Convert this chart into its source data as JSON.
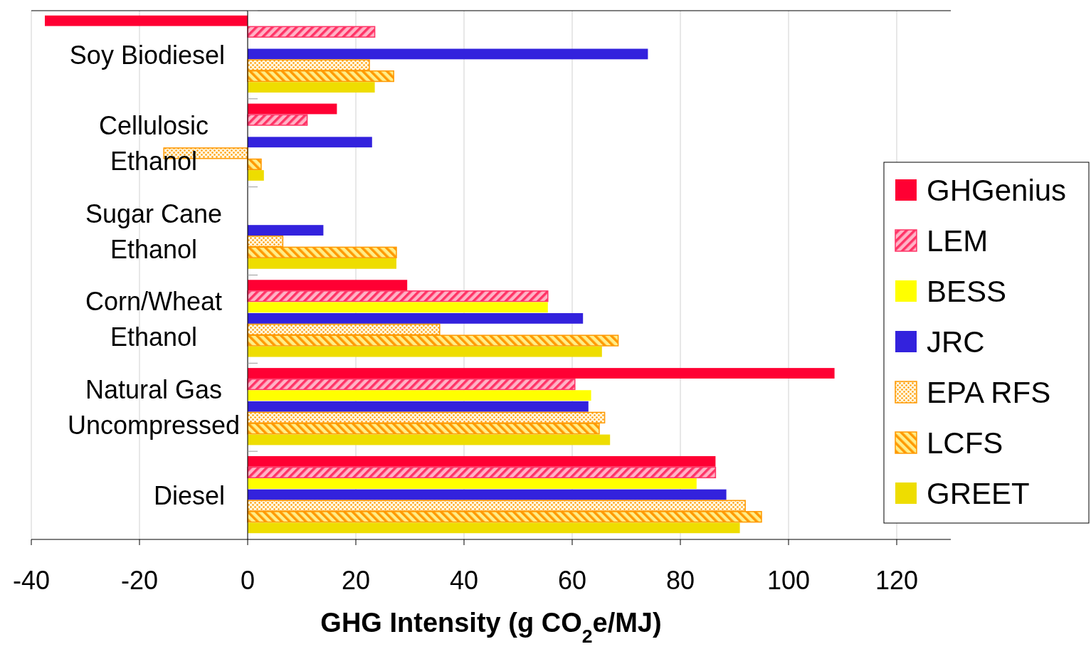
{
  "chart_data": {
    "type": "bar",
    "orientation": "horizontal",
    "xlabel": "GHG Intensity (g CO$_{2}$e/MJ)",
    "categories": [
      "Soy Biodiesel",
      "Cellulosic Ethanol",
      "Sugar Cane Ethanol",
      "Corn/Wheat Ethanol",
      "Natural Gas Uncompressed",
      "Diesel"
    ],
    "series": [
      {
        "name": "GHGenius",
        "color": "#ff0033",
        "values": [
          -37.5,
          16.5,
          null,
          29.5,
          108.5,
          86.5
        ]
      },
      {
        "name": "LEM",
        "color": "#ff3366",
        "values": [
          23.5,
          11,
          null,
          55.5,
          60.5,
          86.5
        ]
      },
      {
        "name": "BESS",
        "color": "#ffff00",
        "values": [
          null,
          null,
          null,
          55.5,
          63.5,
          83
        ]
      },
      {
        "name": "JRC",
        "color": "#3322dd",
        "values": [
          74,
          23,
          14,
          62,
          63,
          88.5
        ]
      },
      {
        "name": "EPA RFS",
        "color": "#ff9900",
        "values": [
          22.5,
          -15.5,
          6.5,
          35.5,
          66,
          92
        ]
      },
      {
        "name": "LCFS",
        "color": "#ff9901",
        "values": [
          27,
          2.5,
          27.5,
          68.5,
          65,
          95
        ]
      },
      {
        "name": "GREET",
        "color": "#eedd00",
        "values": [
          23.5,
          3,
          27.5,
          65.5,
          67,
          91
        ]
      }
    ],
    "xlim": [
      -40,
      130
    ],
    "xticks": [
      -40,
      -20,
      0,
      20,
      40,
      60,
      80,
      100,
      120
    ],
    "grid": "x",
    "legend": "right"
  }
}
